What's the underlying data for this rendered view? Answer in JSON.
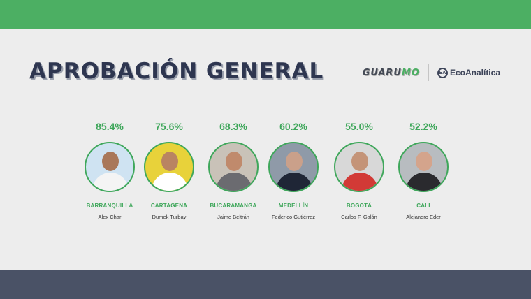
{
  "header": {
    "title": "APROBACIÓN GENERAL",
    "logo_guarumo_main": "GUARU",
    "logo_guarumo_accent": "MO",
    "logo_eco_mark": "EA",
    "logo_eco_text": "EcoAnalítica"
  },
  "colors": {
    "accent_green": "#4caf63",
    "footer": "#4a5266",
    "title": "#2e3650"
  },
  "chart_data": {
    "type": "bar",
    "title": "APROBACIÓN GENERAL",
    "categories": [
      "BARRANQUILLA",
      "CARTAGENA",
      "BUCARAMANGA",
      "MEDELLÍN",
      "BOGOTÁ",
      "CALI"
    ],
    "values": [
      85.4,
      75.6,
      68.3,
      60.2,
      55.0,
      52.2
    ],
    "labels": [
      "85.4%",
      "75.6%",
      "68.3%",
      "60.2%",
      "55.0%",
      "52.2%"
    ],
    "names": [
      "Alex Char",
      "Dumek Turbay",
      "Jaime Beltrán",
      "Federico Gutiérrez",
      "Carlos F. Galán",
      "Alejandro Eder"
    ],
    "avatar_colors": [
      {
        "bg": "#cfe3f2",
        "skin": "#a9785a",
        "shirt": "#f4f4f4"
      },
      {
        "bg": "#e8d23a",
        "skin": "#b98462",
        "shirt": "#ffffff"
      },
      {
        "bg": "#c9c2b8",
        "skin": "#c08a6c",
        "shirt": "#6b6b70"
      },
      {
        "bg": "#8f9aa8",
        "skin": "#caa08a",
        "shirt": "#1f2636"
      },
      {
        "bg": "#d8d8d8",
        "skin": "#c49478",
        "shirt": "#d23a36"
      },
      {
        "bg": "#b8bcc0",
        "skin": "#d4a48c",
        "shirt": "#2a2a2e"
      }
    ]
  }
}
